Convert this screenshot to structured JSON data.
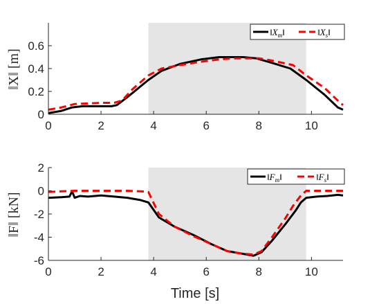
{
  "chart_data": [
    {
      "type": "line",
      "xlabel": "",
      "ylabel": "‖X‖ [m]",
      "xlim": [
        0,
        11.2
      ],
      "ylim": [
        0,
        0.8
      ],
      "xticks": [
        "0",
        "2",
        "4",
        "6",
        "8",
        "10"
      ],
      "yticks": [
        "0",
        "0.2",
        "0.4",
        "0.6"
      ],
      "shaded_region": [
        3.8,
        9.8
      ],
      "grid": false,
      "legend_position": "top-right",
      "series": [
        {
          "name": "‖X_m‖",
          "color": "#000000",
          "style": "solid",
          "x": [
            0,
            0.5,
            0.9,
            1.3,
            2.4,
            2.6,
            3.0,
            3.8,
            4.3,
            5.0,
            5.8,
            6.5,
            6.8,
            7.4,
            7.9,
            8.5,
            9.2,
            9.8,
            10.5,
            11.0,
            11.2
          ],
          "y": [
            0.01,
            0.03,
            0.06,
            0.07,
            0.07,
            0.08,
            0.15,
            0.3,
            0.38,
            0.44,
            0.48,
            0.5,
            0.5,
            0.5,
            0.49,
            0.45,
            0.4,
            0.3,
            0.17,
            0.06,
            0.04
          ]
        },
        {
          "name": "‖X_s‖",
          "color": "#ff0000",
          "style": "dashed",
          "x": [
            0,
            0.5,
            1.0,
            2.0,
            2.5,
            2.8,
            3.2,
            3.8,
            4.3,
            5.0,
            5.8,
            6.5,
            7.0,
            7.5,
            8.0,
            8.5,
            9.3,
            9.8,
            10.5,
            11.0,
            11.2
          ],
          "y": [
            0.04,
            0.06,
            0.09,
            0.1,
            0.1,
            0.12,
            0.22,
            0.34,
            0.4,
            0.43,
            0.46,
            0.48,
            0.49,
            0.49,
            0.49,
            0.47,
            0.43,
            0.34,
            0.23,
            0.12,
            0.08
          ]
        }
      ]
    },
    {
      "type": "line",
      "xlabel": "Time [s]",
      "ylabel": "‖F‖ [kN]",
      "xlim": [
        0,
        11.2
      ],
      "ylim": [
        -6,
        2
      ],
      "xticks": [
        "0",
        "2",
        "4",
        "6",
        "8",
        "10"
      ],
      "yticks": [
        "-6",
        "-4",
        "-2",
        "0",
        "2"
      ],
      "shaded_region": [
        3.8,
        9.8
      ],
      "grid": false,
      "legend_position": "top-right",
      "series": [
        {
          "name": "‖F_m‖",
          "color": "#000000",
          "style": "solid",
          "x": [
            0,
            0.5,
            0.8,
            0.9,
            1.0,
            1.2,
            1.5,
            2.0,
            2.5,
            3.0,
            3.5,
            3.8,
            4.2,
            4.8,
            5.5,
            6.2,
            6.8,
            7.3,
            7.8,
            8.1,
            8.5,
            9.0,
            9.4,
            9.6,
            9.8,
            10.2,
            10.6,
            11.0,
            11.2
          ],
          "y": [
            -0.6,
            -0.55,
            -0.5,
            -0.05,
            -0.6,
            -0.45,
            -0.5,
            -0.4,
            -0.5,
            -0.6,
            -0.8,
            -1.0,
            -2.3,
            -3.1,
            -3.8,
            -4.6,
            -5.2,
            -5.4,
            -5.6,
            -5.3,
            -4.3,
            -2.9,
            -1.7,
            -1.0,
            -0.6,
            -0.5,
            -0.45,
            -0.35,
            -0.4
          ]
        },
        {
          "name": "‖F_s‖",
          "color": "#ff0000",
          "style": "dashed",
          "x": [
            0,
            0.5,
            1.0,
            2.0,
            3.0,
            3.5,
            3.8,
            4.2,
            4.8,
            5.5,
            6.2,
            6.8,
            7.3,
            7.8,
            8.1,
            8.5,
            9.0,
            9.3,
            9.6,
            9.8,
            10.5,
            11.2
          ],
          "y": [
            -0.1,
            -0.05,
            0.0,
            0.0,
            0.0,
            -0.05,
            -0.1,
            -2.0,
            -3.1,
            -3.9,
            -4.6,
            -5.2,
            -5.4,
            -5.5,
            -5.2,
            -4.0,
            -2.4,
            -1.3,
            -0.4,
            0.0,
            0.0,
            0.0
          ]
        }
      ]
    }
  ]
}
